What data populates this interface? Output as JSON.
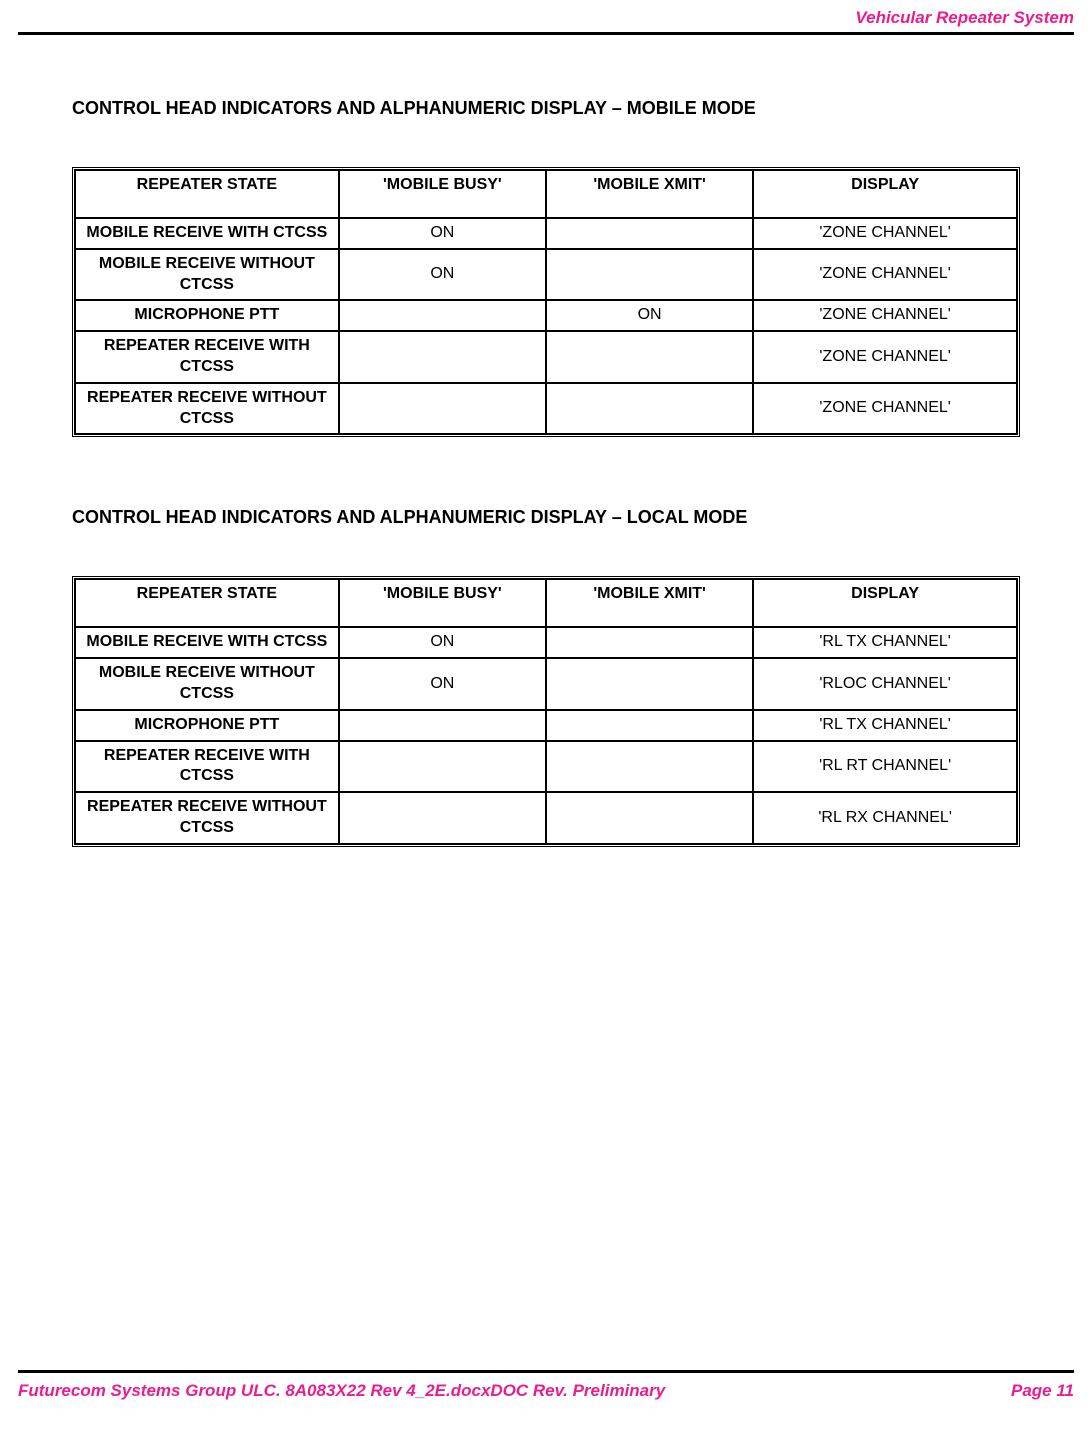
{
  "header": {
    "title": "Vehicular Repeater System"
  },
  "colors": {
    "accent": "#e91e8c",
    "rule": "#000000",
    "text": "#000000",
    "background": "#ffffff"
  },
  "section1": {
    "title": "CONTROL HEAD INDICATORS AND ALPHANUMERIC DISPLAY – MOBILE MODE",
    "table": {
      "type": "table",
      "columns": [
        "REPEATER STATE",
        "'MOBILE BUSY'",
        "'MOBILE XMIT'",
        "DISPLAY"
      ],
      "rows": [
        [
          "MOBILE RECEIVE WITH CTCSS",
          "ON",
          "",
          "'ZONE CHANNEL'"
        ],
        [
          "MOBILE RECEIVE WITHOUT CTCSS",
          "ON",
          "",
          "'ZONE CHANNEL'"
        ],
        [
          "MICROPHONE PTT",
          "",
          "ON",
          "'ZONE CHANNEL'"
        ],
        [
          "REPEATER RECEIVE WITH CTCSS",
          "",
          "",
          "'ZONE CHANNEL'"
        ],
        [
          "REPEATER RECEIVE WITHOUT CTCSS",
          "",
          "",
          "'ZONE CHANNEL'"
        ]
      ],
      "border_color": "#000000",
      "header_fontweight": "bold",
      "col_widths_pct": [
        28,
        22,
        22,
        28
      ]
    }
  },
  "section2": {
    "title": "CONTROL HEAD INDICATORS AND ALPHANUMERIC DISPLAY – LOCAL MODE",
    "table": {
      "type": "table",
      "columns": [
        "REPEATER STATE",
        "'MOBILE BUSY'",
        "'MOBILE XMIT'",
        "DISPLAY"
      ],
      "rows": [
        [
          "MOBILE RECEIVE WITH CTCSS",
          "ON",
          "",
          "'RL TX CHANNEL'"
        ],
        [
          "MOBILE RECEIVE WITHOUT CTCSS",
          "ON",
          "",
          "'RLOC CHANNEL'"
        ],
        [
          "MICROPHONE PTT",
          "",
          "",
          "'RL TX CHANNEL'"
        ],
        [
          "REPEATER RECEIVE WITH CTCSS",
          "",
          "",
          "'RL RT CHANNEL'"
        ],
        [
          "REPEATER RECEIVE WITHOUT CTCSS",
          "",
          "",
          "'RL RX CHANNEL'"
        ]
      ],
      "border_color": "#000000",
      "header_fontweight": "bold",
      "col_widths_pct": [
        28,
        22,
        22,
        28
      ]
    }
  },
  "footer": {
    "left": "Futurecom Systems Group ULC. 8A083X22 Rev 4_2E.docxDOC Rev. Preliminary",
    "right": "Page 11"
  }
}
